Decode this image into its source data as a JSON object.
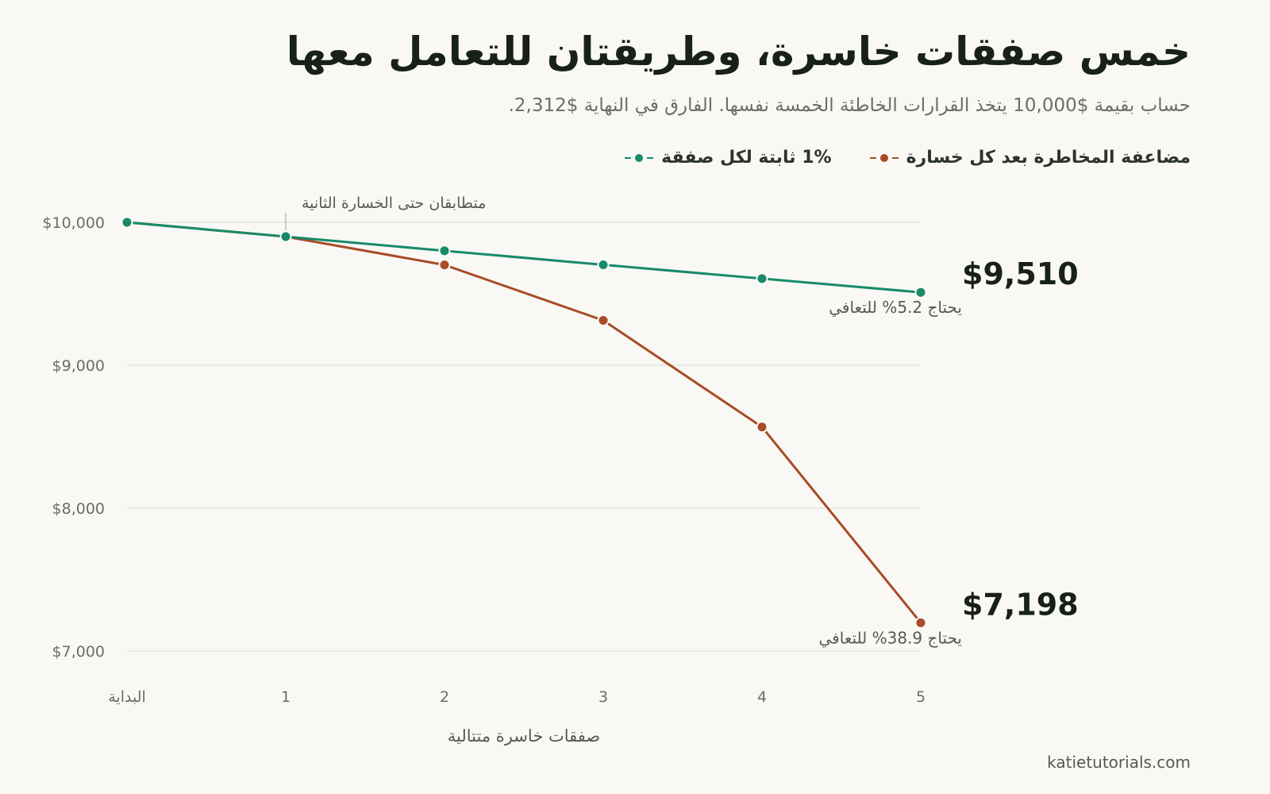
{
  "chart_data": {
    "type": "line",
    "title": "خمس صفقات خاسرة، وطريقتان للتعامل معها",
    "subtitle": "حساب بقيمة $10,000 يتخذ القرارات الخاطئة الخمسة نفسها. الفارق في النهاية $2,312.",
    "xlabel": "صفقات خاسرة متتالية",
    "categories": [
      "البداية",
      "1",
      "2",
      "3",
      "4",
      "5"
    ],
    "ylim": [
      7000,
      10000
    ],
    "yticks": [
      {
        "value": 10000,
        "label": "$10,000"
      },
      {
        "value": 9000,
        "label": "$9,000"
      },
      {
        "value": 8000,
        "label": "$8,000"
      },
      {
        "value": 7000,
        "label": "$7,000"
      }
    ],
    "grid": true,
    "legend_position": "top-right",
    "series": [
      {
        "name": "1% ثابتة لكل صفقة",
        "color": "#178a6a",
        "values": [
          10000,
          9900,
          9801,
          9703,
          9606,
          9510
        ],
        "end_label": "$9,510",
        "end_note": "يحتاج 5.2% للتعافي"
      },
      {
        "name": "مضاعفة المخاطرة بعد كل خسارة",
        "color": "#a84b26",
        "values": [
          10000,
          9900,
          9702,
          9314,
          8568,
          7198
        ],
        "end_label": "$7,198",
        "end_note": "يحتاج 38.9% للتعافي"
      }
    ],
    "annotations": [
      {
        "x_index": 1,
        "text": "متطابقان حتى الخسارة الثانية"
      }
    ]
  },
  "source": "katietutorials.com"
}
